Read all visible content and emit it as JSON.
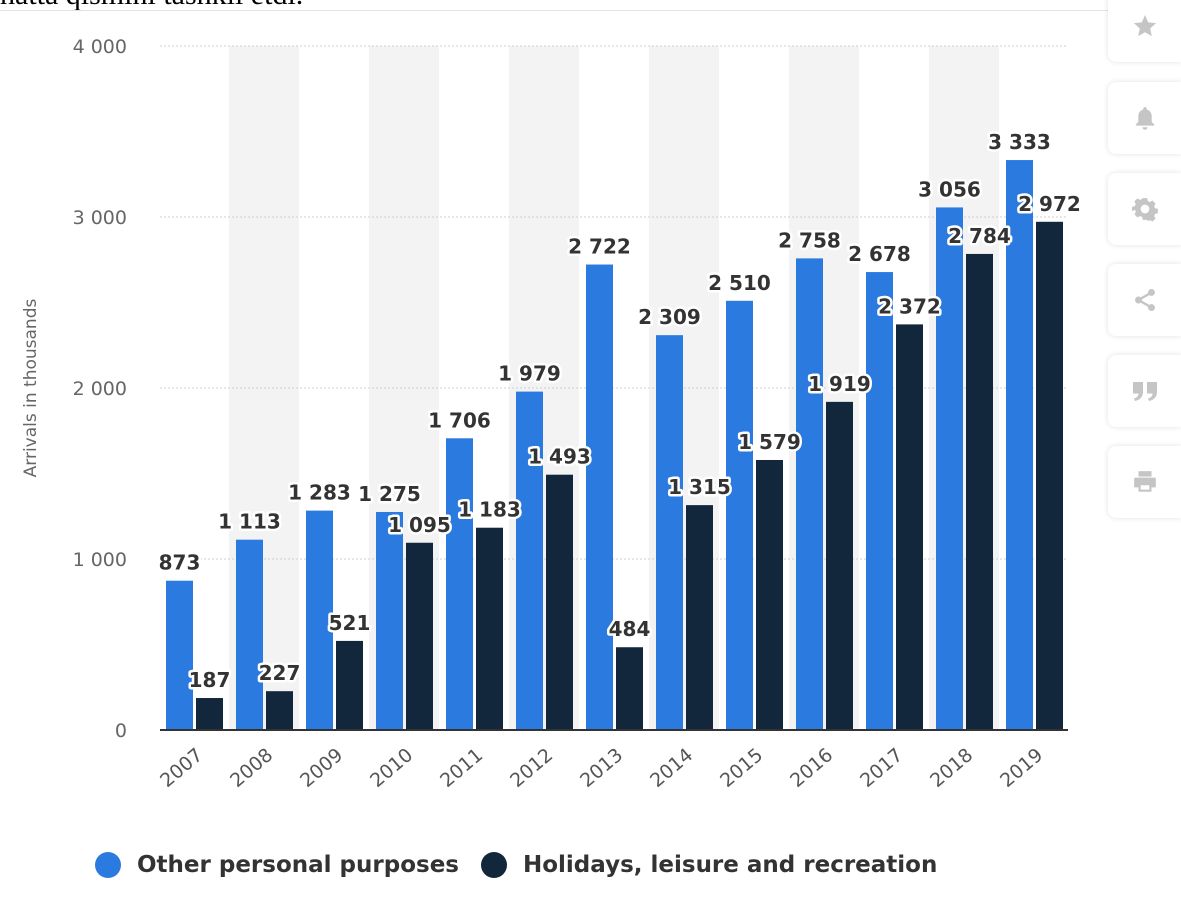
{
  "cut_text": "hatta qismini tashkil etdi.",
  "colors": {
    "series_other": "#2b7ae0",
    "series_holidays": "#12263c",
    "grid": "#cfcfcf",
    "axis": "#333333",
    "band": "#f3f3f3",
    "tool_icon": "#c5c5c5"
  },
  "toolbar": {
    "items": [
      {
        "icon": "star-icon"
      },
      {
        "icon": "bell-icon"
      },
      {
        "icon": "gear-icon"
      },
      {
        "icon": "share-icon"
      },
      {
        "icon": "quote-icon"
      },
      {
        "icon": "print-icon"
      }
    ]
  },
  "chart_data": {
    "type": "bar",
    "ylabel": "Arrivals in thousands",
    "ylim": [
      0,
      4000
    ],
    "yticks": [
      0,
      1000,
      2000,
      3000,
      4000
    ],
    "ytick_labels": [
      "0",
      "1 000",
      "2 000",
      "3 000",
      "4 000"
    ],
    "grid": true,
    "legend": "bottom-left",
    "categories": [
      "2007",
      "2008",
      "2009",
      "2010",
      "2011",
      "2012",
      "2013",
      "2014",
      "2015",
      "2016",
      "2017",
      "2018",
      "2019"
    ],
    "series": [
      {
        "name": "Other personal purposes",
        "values": [
          873,
          1113,
          1283,
          1275,
          1706,
          1979,
          2722,
          2309,
          2510,
          2758,
          2678,
          3056,
          3333
        ],
        "labels": [
          "873",
          "1 113",
          "1 283",
          "1 275",
          "1 706",
          "1 979",
          "2 722",
          "2 309",
          "2 510",
          "2 758",
          "2 678",
          "3 056",
          "3 333"
        ]
      },
      {
        "name": "Holidays, leisure and recreation",
        "values": [
          187,
          227,
          521,
          1095,
          1183,
          1493,
          484,
          1315,
          1579,
          1919,
          2372,
          2784,
          2972
        ],
        "labels": [
          "187",
          "227",
          "521",
          "1 095",
          "1 183",
          "1 493",
          "484",
          "1 315",
          "1 579",
          "1 919",
          "2 372",
          "2 784",
          "2 972"
        ]
      }
    ]
  }
}
